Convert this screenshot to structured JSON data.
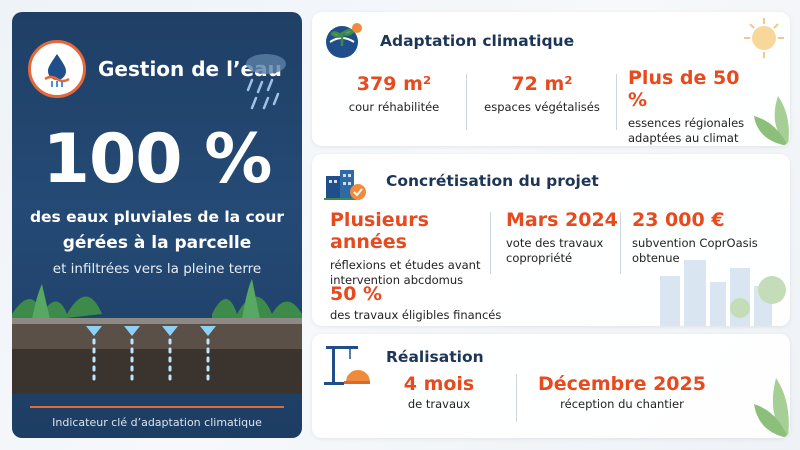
{
  "left": {
    "title": "Gestion de l’eau",
    "big_value": "100 %",
    "line1": "des eaux pluviales de la cour",
    "line2": "gérées à la parcelle",
    "line3": "et infiltrées vers la pleine terre",
    "footer": "Indicateur clé d’adaptation climatique"
  },
  "adaptation": {
    "title": "Adaptation climatique",
    "stats": [
      {
        "value": "379 m²",
        "label": "cour réhabilitée"
      },
      {
        "value": "72 m²",
        "label": "espaces végétalisés"
      },
      {
        "value": "Plus de 50 %",
        "label": "essences régionales adaptées au climat francilien"
      }
    ]
  },
  "concretisation": {
    "title": "Concrétisation du projet",
    "stats": [
      {
        "value": "Plusieurs années",
        "label": "réflexions et études avant intervention abcdomus"
      },
      {
        "value": "Mars 2024",
        "label": "vote des travaux copropriété"
      },
      {
        "value": "23 000 €",
        "label": "subvention CoprOasis obtenue"
      },
      {
        "value": "50 %",
        "label": "des travaux éligibles financés"
      }
    ]
  },
  "realisation": {
    "title": "Réalisation",
    "stats": [
      {
        "value": "4 mois",
        "label": "de travaux"
      },
      {
        "value": "Décembre 2025",
        "label": "réception du chantier"
      }
    ]
  },
  "colors": {
    "accent": "#e8491d",
    "navy": "#1f3f66",
    "title": "#1d3557"
  },
  "icons": [
    "water-drop-icon",
    "rain-cloud-icon",
    "globe-plant-icon",
    "buildings-check-icon",
    "crane-helmet-icon",
    "sun-icon",
    "leaf-icon"
  ]
}
